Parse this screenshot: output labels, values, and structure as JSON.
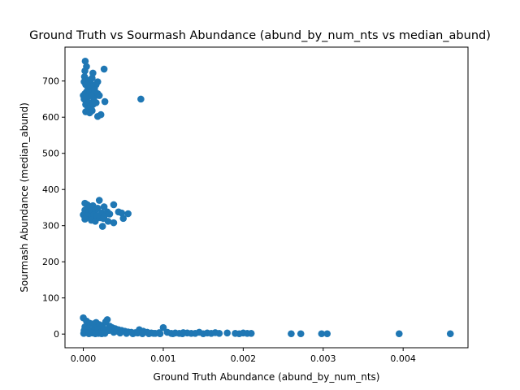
{
  "chart_data": {
    "type": "scatter",
    "title": "Ground Truth vs Sourmash Abundance (abund_by_num_nts vs median_abund)",
    "xlabel": "Ground Truth Abundance (abund_by_num_nts)",
    "ylabel": "Sourmash Abundance (median_abund)",
    "xlim": [
      -0.000229,
      0.004811
    ],
    "ylim": [
      -37.8,
      793.8
    ],
    "xticks": [
      0.0,
      0.001,
      0.002,
      0.003,
      0.004
    ],
    "xtick_labels": [
      "0.000",
      "0.001",
      "0.002",
      "0.003",
      "0.004"
    ],
    "yticks": [
      0,
      100,
      200,
      300,
      400,
      500,
      600,
      700
    ],
    "ytick_labels": [
      "0",
      "100",
      "200",
      "300",
      "400",
      "500",
      "600",
      "700"
    ],
    "grid": false,
    "marker_color": "#1f77b4",
    "series": [
      {
        "points": [
          [
            2.4e-05,
            755
          ],
          [
            4e-05,
            740
          ],
          [
            2e-05,
            728
          ],
          [
            1.5e-05,
            712
          ],
          [
            1e-05,
            698
          ],
          [
            3e-05,
            690
          ],
          [
            5e-05,
            700
          ],
          [
            7e-05,
            702
          ],
          [
            9e-05,
            695
          ],
          [
            0.00011,
            708
          ],
          [
            0.00012,
            722
          ],
          [
            0.00018,
            698
          ],
          [
            0.00016,
            690
          ],
          [
            0.00014,
            680
          ],
          [
            0.0001,
            685
          ],
          [
            6e-05,
            680
          ],
          [
            4e-05,
            670
          ],
          [
            2e-05,
            665
          ],
          [
            0.0,
            660
          ],
          [
            1e-05,
            650
          ],
          [
            5e-05,
            655
          ],
          [
            8e-05,
            668
          ],
          [
            0.00011,
            672
          ],
          [
            0.00015,
            660
          ],
          [
            0.00018,
            665
          ],
          [
            0.0002,
            660
          ],
          [
            0.00013,
            652
          ],
          [
            7e-05,
            640
          ],
          [
            3e-05,
            635
          ],
          [
            6e-05,
            625
          ],
          [
            9e-05,
            630
          ],
          [
            0.00012,
            635
          ],
          [
            0.00016,
            640
          ],
          [
            0.00011,
            618
          ],
          [
            3e-05,
            615
          ],
          [
            8e-05,
            612
          ],
          [
            0.00018,
            602
          ],
          [
            0.00022,
            607
          ],
          [
            0.00026,
            733
          ],
          [
            0.00027,
            643
          ],
          [
            0.00072,
            650
          ],
          [
            0.0001,
            660
          ],
          [
            0.00014,
            675
          ],
          [
            5e-05,
            690
          ]
        ]
      },
      {
        "points": [
          [
            2e-05,
            362
          ],
          [
            5e-05,
            358
          ],
          [
            8e-05,
            350
          ],
          [
            0.00012,
            355
          ],
          [
            0.0002,
            370
          ],
          [
            0.00026,
            352
          ],
          [
            0.00038,
            358
          ],
          [
            2e-05,
            343
          ],
          [
            7e-05,
            338
          ],
          [
            0.0001,
            340
          ],
          [
            0.00015,
            342
          ],
          [
            0.00018,
            348
          ],
          [
            0.00023,
            335
          ],
          [
            0.0003,
            338
          ],
          [
            0.00033,
            332
          ],
          [
            0.00044,
            338
          ],
          [
            0.00048,
            335
          ],
          [
            0.00056,
            333
          ],
          [
            0.0,
            330
          ],
          [
            5e-05,
            328
          ],
          [
            0.0001,
            325
          ],
          [
            0.00013,
            330
          ],
          [
            0.00017,
            328
          ],
          [
            0.00021,
            322
          ],
          [
            0.00026,
            325
          ],
          [
            2e-05,
            318
          ],
          [
            0.0001,
            315
          ],
          [
            0.00015,
            312
          ],
          [
            0.00025,
            320
          ],
          [
            0.00031,
            312
          ],
          [
            0.00038,
            308
          ],
          [
            0.0005,
            320
          ],
          [
            0.00024,
            298
          ]
        ]
      },
      {
        "points": [
          [
            0.0,
            45
          ],
          [
            4e-05,
            36
          ],
          [
            8e-05,
            30
          ],
          [
            0.00012,
            28
          ],
          [
            0.00016,
            32
          ],
          [
            0.0002,
            26
          ],
          [
            0.00024,
            24
          ],
          [
            0.00028,
            34
          ],
          [
            0.0003,
            40
          ],
          [
            0.00033,
            22
          ],
          [
            0.00036,
            18
          ],
          [
            0.0004,
            15
          ],
          [
            0.00044,
            12
          ],
          [
            0.00048,
            10
          ],
          [
            0.00052,
            8
          ],
          [
            0.00056,
            6
          ],
          [
            0.0006,
            5
          ],
          [
            0.00065,
            4
          ],
          [
            0.0007,
            12
          ],
          [
            0.00075,
            8
          ],
          [
            0.0008,
            5
          ],
          [
            0.00085,
            3
          ],
          [
            0.0009,
            2
          ],
          [
            0.00095,
            4
          ],
          [
            0.001,
            18
          ],
          [
            0.00105,
            5
          ],
          [
            0.0011,
            2
          ],
          [
            0.00115,
            3
          ],
          [
            0.0012,
            2
          ],
          [
            0.00125,
            4
          ],
          [
            0.0013,
            3
          ],
          [
            0.00135,
            2
          ],
          [
            0.0014,
            2
          ],
          [
            0.00145,
            5
          ],
          [
            0.0015,
            1
          ],
          [
            0.00155,
            3
          ],
          [
            0.0016,
            2
          ],
          [
            0.00165,
            4
          ],
          [
            0.0017,
            2
          ],
          [
            0.0018,
            3
          ],
          [
            0.0019,
            2
          ],
          [
            0.00195,
            1
          ],
          [
            0.002,
            3
          ],
          [
            0.00205,
            2
          ],
          [
            0.0021,
            2
          ],
          [
            0.0026,
            1
          ],
          [
            0.00272,
            1
          ],
          [
            0.00298,
            1
          ],
          [
            0.00305,
            1
          ],
          [
            0.00395,
            1
          ],
          [
            0.00459,
            1
          ],
          [
            1e-05,
            10
          ],
          [
            2e-05,
            20
          ],
          [
            6e-05,
            15
          ],
          [
            0.0001,
            8
          ],
          [
            0.00014,
            18
          ],
          [
            0.00018,
            12
          ],
          [
            0.00022,
            6
          ],
          [
            0.00026,
            14
          ],
          [
            0.00032,
            10
          ],
          [
            0.00038,
            5
          ],
          [
            0.00042,
            8
          ],
          [
            0.00046,
            3
          ],
          [
            0.00054,
            2
          ],
          [
            0.00062,
            1
          ],
          [
            0.00068,
            3
          ],
          [
            0.00074,
            1
          ],
          [
            0.00082,
            1
          ],
          [
            0.00088,
            2
          ],
          [
            0.00096,
            1
          ],
          [
            0.00112,
            1
          ],
          [
            0.00124,
            1
          ],
          [
            5e-06,
            2
          ],
          [
            3e-05,
            4
          ],
          [
            7e-05,
            1
          ],
          [
            0.00011,
            3
          ],
          [
            0.00015,
            1
          ],
          [
            0.00019,
            2
          ],
          [
            0.00023,
            1
          ],
          [
            0.00027,
            2
          ]
        ]
      }
    ]
  }
}
